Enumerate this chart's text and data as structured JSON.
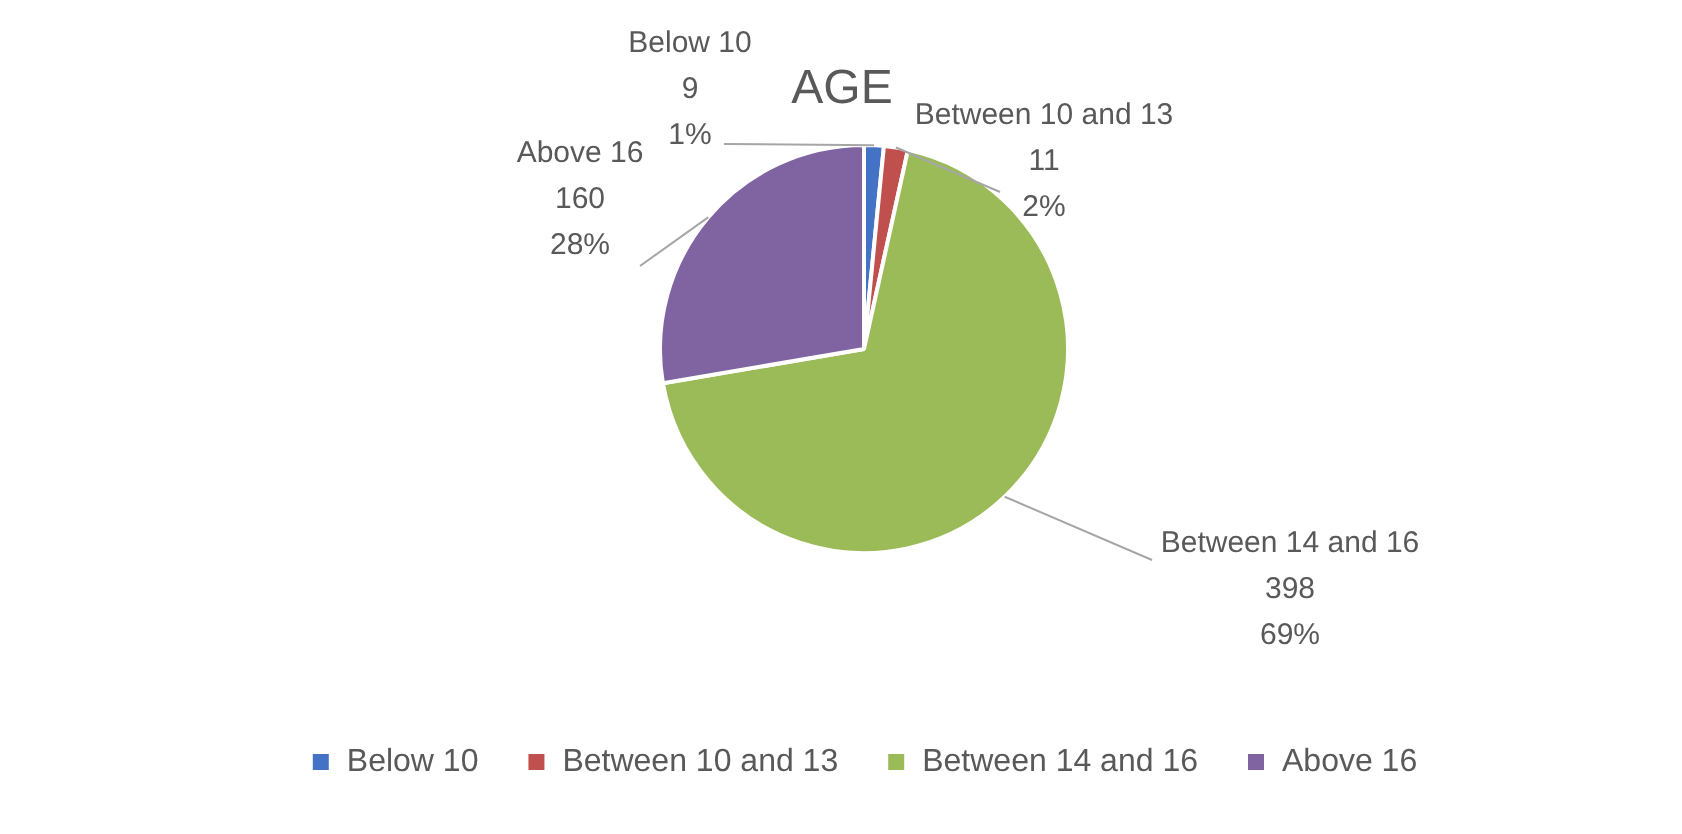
{
  "chart_data": {
    "type": "pie",
    "title": "AGE",
    "categories": [
      "Below 10",
      "Between 10 and 13",
      "Between 14 and 16",
      "Above 16"
    ],
    "values": [
      9,
      11,
      398,
      160
    ],
    "colors": [
      "#4472c4",
      "#c0504d",
      "#9bbb59",
      "#8064a2"
    ],
    "value_labels": [
      "9\n1%",
      "11\n2%",
      "398\n69%",
      "160\n28%"
    ],
    "legend": "bottom"
  }
}
